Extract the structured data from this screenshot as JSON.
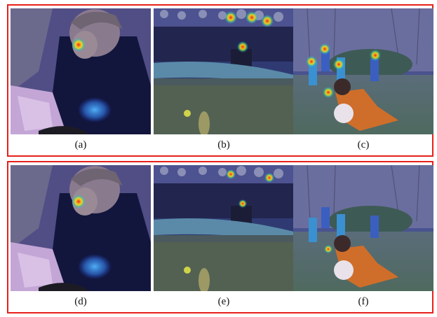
{
  "figure": {
    "groups": [
      {
        "panels": [
          {
            "label": "(a)"
          },
          {
            "label": "(b)"
          },
          {
            "label": "(c)"
          }
        ]
      },
      {
        "panels": [
          {
            "label": "(d)"
          },
          {
            "label": "(e)"
          },
          {
            "label": "(f)"
          }
        ]
      }
    ],
    "colors": {
      "frame": "#e8201b",
      "tint": "#3a3f9e",
      "heat_core": "#e8201b",
      "heat_mid": "#f2e31c",
      "heat_outer": "#2fb7e8"
    },
    "icons": [
      "saliency-heatmap-blob"
    ]
  }
}
